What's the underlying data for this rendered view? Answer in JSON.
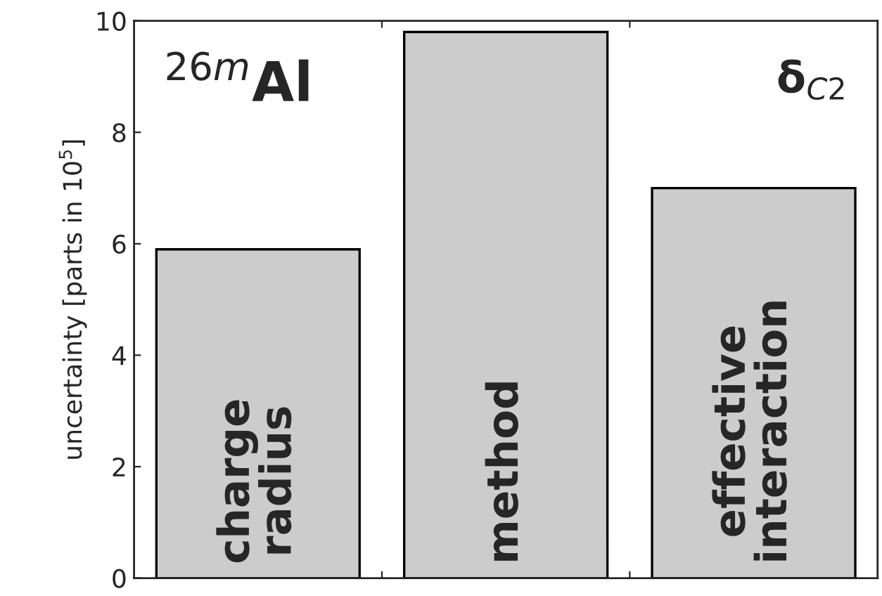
{
  "chart_data": {
    "type": "bar",
    "ylabel": "uncertainty [parts in 10$^{5}$]",
    "categories": [
      "charge radius",
      "method",
      "effective interaction"
    ],
    "values": [
      5.9,
      9.8,
      7.0
    ],
    "color": "#cccccc",
    "ylim": [
      0,
      10
    ],
    "yticks": [
      0,
      2,
      4,
      6,
      8,
      10
    ],
    "annotations": [
      "$^{26m}$Al",
      "δ$_{C2}$"
    ],
    "grid": false,
    "legend": false,
    "tick_labels": "y"
  }
}
